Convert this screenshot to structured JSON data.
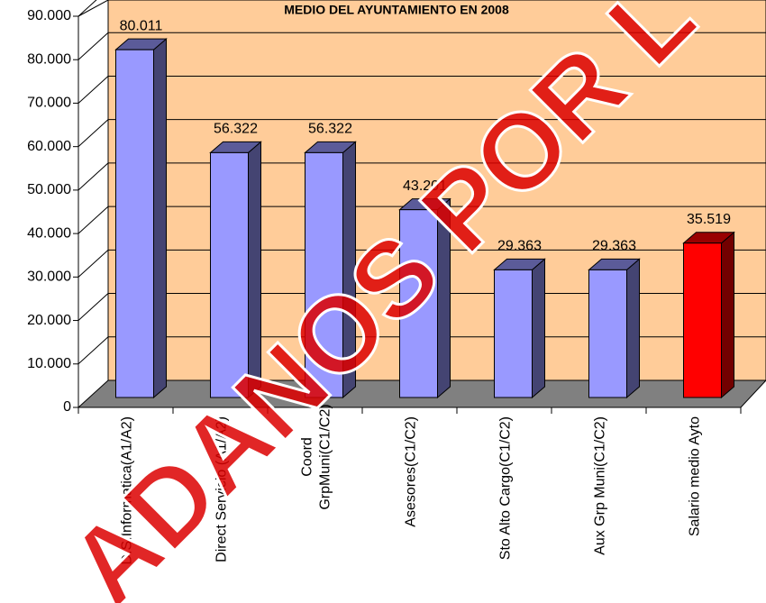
{
  "chart_data": {
    "type": "bar3d",
    "title": "MEDIO DEL AYUNTAMIENTO EN 2008",
    "watermark": "ADANOS POR L",
    "categories": [
      "D.S.Informatica(A1/A2)",
      "Direct Servicio (A1/A2)",
      [
        "Coord",
        "GrpMuni(C1/C2)"
      ],
      "Asesores(C1/C2)",
      "Sto Alto Cargo(C1/C2)",
      "Aux Grp Muni(C1/C2)",
      "Salario medio Ayto"
    ],
    "values": [
      80011,
      56322,
      56322,
      43201,
      29363,
      29363,
      35519
    ],
    "value_labels": [
      "80.011",
      "56.322",
      "56.322",
      "43.201",
      "29.363",
      "29.363",
      "35.519"
    ],
    "colors": [
      "#9999ff",
      "#9999ff",
      "#9999ff",
      "#9999ff",
      "#9999ff",
      "#9999ff",
      "#ff0000"
    ],
    "ylim": [
      0,
      90000
    ],
    "yticks": [
      0,
      {
        "value": 10000,
        "label": "10.000"
      },
      {
        "value": 20000,
        "label": "20.000"
      },
      {
        "value": 30000,
        "label": "30.000"
      },
      {
        "value": 40000,
        "label": "40.000"
      },
      {
        "value": 50000,
        "label": "50.000"
      },
      {
        "value": 60000,
        "label": "60.000"
      },
      {
        "value": 70000,
        "label": "70.000"
      },
      {
        "value": 80000,
        "label": "80.000"
      },
      {
        "value": 90000,
        "label": "90.000"
      }
    ],
    "grid": true
  }
}
